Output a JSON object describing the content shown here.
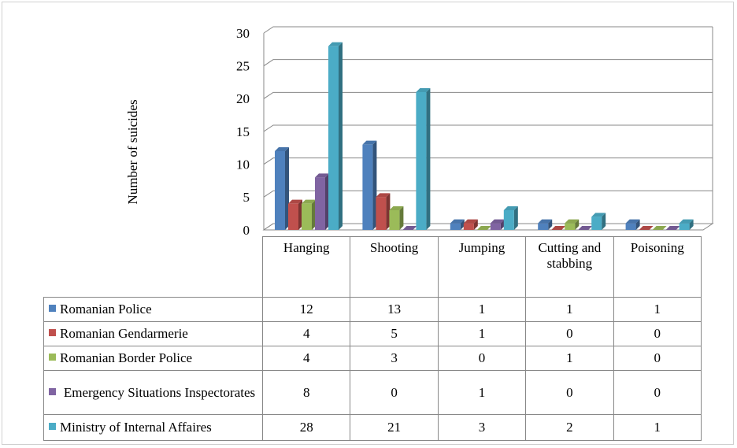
{
  "chart_data": {
    "type": "bar3d",
    "y_axis_label": "Number of suicides",
    "categories": [
      "Hanging",
      "Shooting",
      "Jumping",
      "Cutting and stabbing",
      "Poisoning"
    ],
    "ylim": [
      0,
      30
    ],
    "yticks": [
      0,
      5,
      10,
      15,
      20,
      25,
      30
    ],
    "grid": true,
    "series": [
      {
        "name": "Romanian Police",
        "color": "#4f81bd",
        "values": [
          12,
          13,
          1,
          1,
          1
        ]
      },
      {
        "name": "Romanian Gendarmerie",
        "color": "#c0504d",
        "values": [
          4,
          5,
          1,
          0,
          0
        ]
      },
      {
        "name": "Romanian Border Police",
        "color": "#9bbb59",
        "values": [
          4,
          3,
          0,
          1,
          0
        ]
      },
      {
        "name": "Emergency Situations Inspectorates",
        "color": "#8064a2",
        "values": [
          8,
          0,
          1,
          0,
          0
        ]
      },
      {
        "name": "Ministry of Internal Affaires",
        "color": "#4bacc6",
        "values": [
          28,
          21,
          3,
          2,
          1
        ]
      }
    ]
  }
}
